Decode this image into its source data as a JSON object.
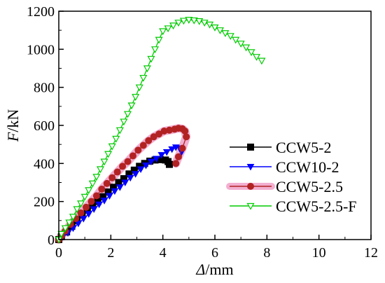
{
  "chart_data": {
    "type": "line",
    "xlabel_var": "Δ",
    "xlabel_unit": "/mm",
    "ylabel_var": "F",
    "ylabel_unit": "/kN",
    "xlim": [
      0,
      12
    ],
    "ylim": [
      0,
      1200
    ],
    "xticks": [
      0,
      2,
      4,
      6,
      8,
      10,
      12
    ],
    "yticks": [
      0,
      200,
      400,
      600,
      800,
      1000,
      1200
    ],
    "legend_position": "right",
    "series": [
      {
        "name": "CCW5-2",
        "color": "#000000",
        "marker": "square",
        "halo": false,
        "points": [
          [
            0,
            0
          ],
          [
            0.1,
            15
          ],
          [
            0.3,
            40
          ],
          [
            0.5,
            70
          ],
          [
            0.7,
            100
          ],
          [
            0.9,
            130
          ],
          [
            1.1,
            155
          ],
          [
            1.3,
            180
          ],
          [
            1.5,
            200
          ],
          [
            1.7,
            225
          ],
          [
            1.9,
            250
          ],
          [
            2.1,
            275
          ],
          [
            2.3,
            300
          ],
          [
            2.5,
            320
          ],
          [
            2.7,
            345
          ],
          [
            2.9,
            365
          ],
          [
            3.1,
            385
          ],
          [
            3.3,
            400
          ],
          [
            3.5,
            412
          ],
          [
            3.7,
            418
          ],
          [
            3.9,
            420
          ],
          [
            4.1,
            418
          ],
          [
            4.2,
            410
          ],
          [
            4.25,
            395
          ]
        ]
      },
      {
        "name": "CCW10-2",
        "color": "#0000ff",
        "marker": "triangle-down",
        "halo": false,
        "points": [
          [
            0,
            0
          ],
          [
            0.15,
            15
          ],
          [
            0.35,
            35
          ],
          [
            0.55,
            60
          ],
          [
            0.75,
            85
          ],
          [
            0.95,
            110
          ],
          [
            1.15,
            135
          ],
          [
            1.35,
            160
          ],
          [
            1.55,
            185
          ],
          [
            1.75,
            205
          ],
          [
            1.95,
            230
          ],
          [
            2.15,
            255
          ],
          [
            2.35,
            275
          ],
          [
            2.55,
            300
          ],
          [
            2.75,
            325
          ],
          [
            2.95,
            345
          ],
          [
            3.15,
            370
          ],
          [
            3.35,
            390
          ],
          [
            3.55,
            410
          ],
          [
            3.75,
            425
          ],
          [
            3.95,
            445
          ],
          [
            4.15,
            460
          ],
          [
            4.35,
            475
          ],
          [
            4.5,
            485
          ],
          [
            4.65,
            480
          ],
          [
            4.72,
            460
          ]
        ]
      },
      {
        "name": "CCW5-2.5",
        "color": "#b22222",
        "marker": "circle",
        "halo": true,
        "halo_color": "#f0a0c8",
        "points": [
          [
            0,
            0
          ],
          [
            0.1,
            20
          ],
          [
            0.25,
            45
          ],
          [
            0.45,
            80
          ],
          [
            0.65,
            110
          ],
          [
            0.85,
            140
          ],
          [
            1.05,
            170
          ],
          [
            1.25,
            200
          ],
          [
            1.45,
            230
          ],
          [
            1.65,
            265
          ],
          [
            1.85,
            295
          ],
          [
            2.05,
            325
          ],
          [
            2.25,
            355
          ],
          [
            2.45,
            385
          ],
          [
            2.65,
            410
          ],
          [
            2.85,
            440
          ],
          [
            3.05,
            470
          ],
          [
            3.25,
            495
          ],
          [
            3.45,
            520
          ],
          [
            3.65,
            540
          ],
          [
            3.85,
            555
          ],
          [
            4.05,
            570
          ],
          [
            4.25,
            575
          ],
          [
            4.45,
            580
          ],
          [
            4.6,
            585
          ],
          [
            4.75,
            582
          ],
          [
            4.85,
            570
          ],
          [
            4.9,
            540
          ],
          [
            4.75,
            480
          ],
          [
            4.6,
            435
          ],
          [
            4.5,
            400
          ]
        ]
      },
      {
        "name": "CCW5-2.5-F",
        "color": "#00cc00",
        "marker": "triangle-down-open",
        "halo": false,
        "points": [
          [
            0,
            0
          ],
          [
            0.1,
            30
          ],
          [
            0.25,
            60
          ],
          [
            0.4,
            90
          ],
          [
            0.55,
            120
          ],
          [
            0.7,
            160
          ],
          [
            0.85,
            190
          ],
          [
            1.0,
            225
          ],
          [
            1.15,
            260
          ],
          [
            1.3,
            295
          ],
          [
            1.45,
            330
          ],
          [
            1.6,
            370
          ],
          [
            1.75,
            410
          ],
          [
            1.9,
            450
          ],
          [
            2.05,
            490
          ],
          [
            2.2,
            530
          ],
          [
            2.35,
            575
          ],
          [
            2.5,
            620
          ],
          [
            2.65,
            660
          ],
          [
            2.8,
            705
          ],
          [
            2.95,
            750
          ],
          [
            3.1,
            800
          ],
          [
            3.25,
            850
          ],
          [
            3.4,
            900
          ],
          [
            3.55,
            950
          ],
          [
            3.7,
            1000
          ],
          [
            3.85,
            1050
          ],
          [
            4.0,
            1095
          ],
          [
            4.2,
            1110
          ],
          [
            4.4,
            1125
          ],
          [
            4.6,
            1140
          ],
          [
            4.8,
            1150
          ],
          [
            5.0,
            1155
          ],
          [
            5.2,
            1152
          ],
          [
            5.4,
            1148
          ],
          [
            5.6,
            1140
          ],
          [
            5.8,
            1130
          ],
          [
            6.0,
            1115
          ],
          [
            6.2,
            1100
          ],
          [
            6.4,
            1085
          ],
          [
            6.6,
            1070
          ],
          [
            6.8,
            1050
          ],
          [
            7.0,
            1030
          ],
          [
            7.2,
            1010
          ],
          [
            7.4,
            985
          ],
          [
            7.6,
            960
          ],
          [
            7.8,
            940
          ]
        ]
      }
    ]
  }
}
